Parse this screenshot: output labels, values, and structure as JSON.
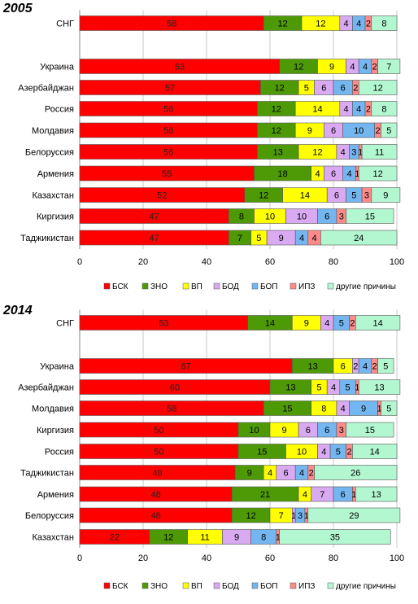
{
  "colors": {
    "БСК": "#ff0000",
    "ЗНО": "#4e9a06",
    "ВП": "#ffff00",
    "БОД": "#d9a9f2",
    "БОП": "#73b6f0",
    "ИПЗ": "#ff8a8a",
    "другие причины": "#b3f7d1"
  },
  "chart_data": [
    {
      "type": "bar",
      "orientation": "horizontal",
      "stacked": true,
      "title": "2005",
      "categories": [
        "СНГ",
        "Украина",
        "Азербайджан",
        "Россия",
        "Молдавия",
        "Белоруссия",
        "Армения",
        "Казахстан",
        "Киргизия",
        "Таджикистан"
      ],
      "series": [
        {
          "name": "БСК",
          "values": [
            58,
            63,
            57,
            56,
            56,
            56,
            55,
            52,
            47,
            47
          ]
        },
        {
          "name": "ЗНО",
          "values": [
            12,
            12,
            12,
            12,
            12,
            13,
            18,
            12,
            8,
            7
          ]
        },
        {
          "name": "ВП",
          "values": [
            12,
            9,
            5,
            14,
            9,
            12,
            4,
            14,
            10,
            5
          ]
        },
        {
          "name": "БОД",
          "values": [
            4,
            4,
            6,
            4,
            6,
            4,
            6,
            6,
            10,
            9
          ]
        },
        {
          "name": "БОП",
          "values": [
            4,
            4,
            6,
            4,
            10,
            3,
            4,
            5,
            6,
            4
          ]
        },
        {
          "name": "ИПЗ",
          "values": [
            2,
            2,
            2,
            2,
            2,
            1,
            1,
            3,
            3,
            4
          ]
        },
        {
          "name": "другие причины",
          "values": [
            8,
            7,
            12,
            8,
            5,
            11,
            12,
            9,
            15,
            24
          ]
        }
      ],
      "xlim": [
        0,
        100
      ],
      "xticks": [
        0,
        20,
        40,
        60,
        80,
        100
      ],
      "grid": true,
      "legend": "bottom"
    },
    {
      "type": "bar",
      "orientation": "horizontal",
      "stacked": true,
      "title": "2014",
      "categories": [
        "СНГ",
        "Украина",
        "Азербайджан",
        "Молдавия",
        "Киргизия",
        "Россия",
        "Таджикистан",
        "Армения",
        "Белоруссия",
        "Казахстан"
      ],
      "series": [
        {
          "name": "БСК",
          "values": [
            53,
            67,
            60,
            58,
            50,
            50,
            49,
            48,
            48,
            22
          ]
        },
        {
          "name": "ЗНО",
          "values": [
            14,
            13,
            13,
            15,
            10,
            15,
            9,
            21,
            12,
            12
          ]
        },
        {
          "name": "ВП",
          "values": [
            9,
            6,
            5,
            8,
            9,
            10,
            4,
            4,
            7,
            11
          ]
        },
        {
          "name": "БОД",
          "values": [
            4,
            2,
            4,
            4,
            6,
            4,
            6,
            7,
            1,
            9
          ]
        },
        {
          "name": "БОП",
          "values": [
            5,
            4,
            5,
            9,
            6,
            5,
            4,
            6,
            3,
            8
          ]
        },
        {
          "name": "ИПЗ",
          "values": [
            2,
            2,
            1,
            1,
            3,
            2,
            2,
            1,
            1,
            1
          ]
        },
        {
          "name": "другие причины",
          "values": [
            14,
            5,
            13,
            5,
            15,
            14,
            26,
            13,
            29,
            35
          ]
        }
      ],
      "xlim": [
        0,
        100
      ],
      "xticks": [
        0,
        20,
        40,
        60,
        80,
        100
      ],
      "grid": true,
      "legend": "bottom"
    }
  ]
}
